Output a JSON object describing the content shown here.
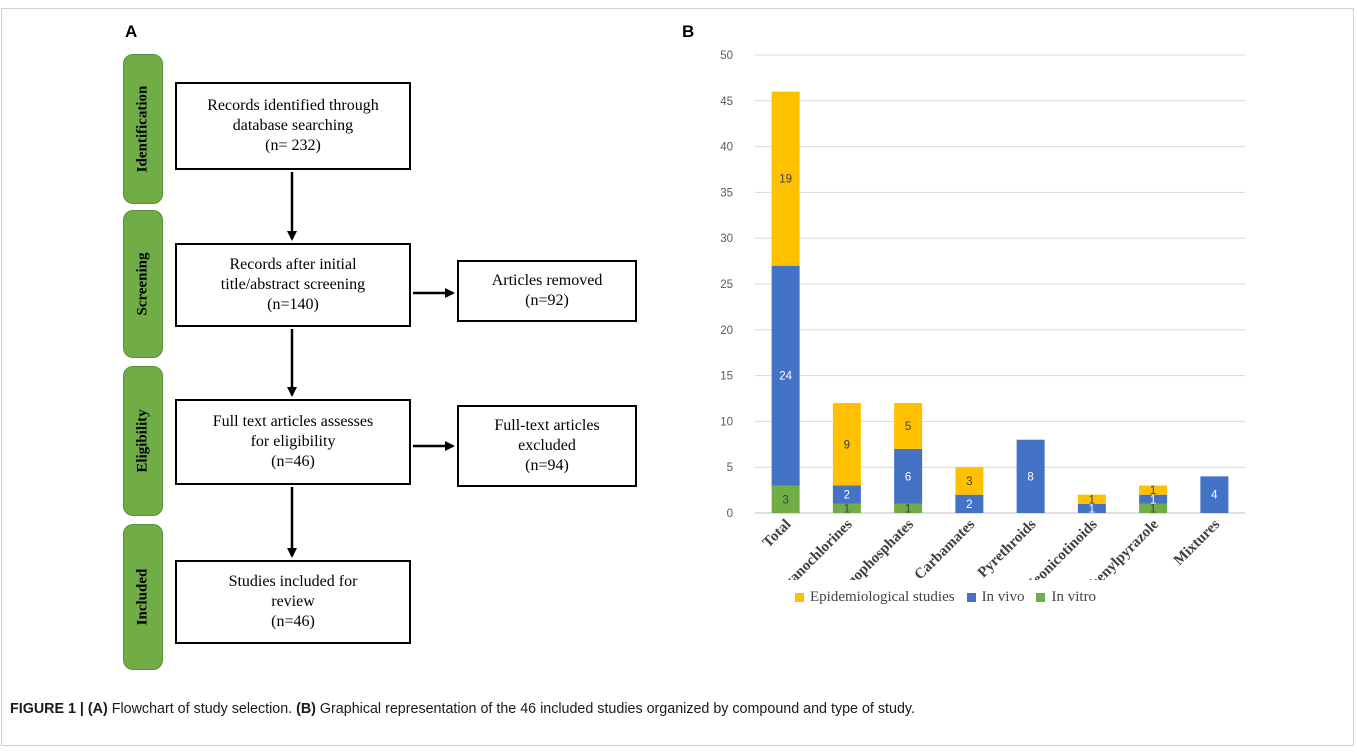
{
  "panel_a": {
    "label": "A",
    "stages": [
      "Identification",
      "Screening",
      "Eligibility",
      "Included"
    ],
    "boxes": {
      "identified": [
        "Records identified through",
        "database searching",
        "(n= 232)"
      ],
      "screened": [
        "Records after initial",
        "title/abstract screening",
        "(n=140)"
      ],
      "removed": [
        "Articles removed",
        "(n=92)"
      ],
      "eligible": [
        "Full text articles assesses",
        "for eligibility",
        "(n=46)"
      ],
      "excluded": [
        "Full-text articles",
        "excluded",
        "(n=94)"
      ],
      "included": [
        "Studies included for",
        "review",
        "(n=46)"
      ]
    }
  },
  "panel_b": {
    "label": "B"
  },
  "chart_data": {
    "type": "bar",
    "stacked": true,
    "categories": [
      "Total",
      "Organochlorines",
      "Organophosphates",
      "Carbamates",
      "Pyrethroids",
      "Neonicotinoids",
      "Phenylpyrazole",
      "Mixtures"
    ],
    "series": [
      {
        "name": "In vitro",
        "color": "#70ad47",
        "values": [
          3,
          1,
          1,
          0,
          0,
          0,
          1,
          0
        ]
      },
      {
        "name": "In vivo",
        "color": "#4472c4",
        "values": [
          24,
          2,
          6,
          2,
          8,
          1,
          1,
          4
        ]
      },
      {
        "name": "Epidemiological studies",
        "color": "#ffc000",
        "values": [
          19,
          9,
          5,
          3,
          0,
          1,
          1,
          0
        ]
      }
    ],
    "yticks": [
      0,
      5,
      10,
      15,
      20,
      25,
      30,
      35,
      40,
      45,
      50
    ],
    "ylim": [
      0,
      50
    ],
    "legend_order": [
      "Epidemiological studies",
      "In vivo",
      "In vitro"
    ],
    "legend_position": "bottom",
    "grid": true
  },
  "caption": {
    "figure_label": "FIGURE 1 |",
    "a_marker": "(A)",
    "a_text": " Flowchart of study selection. ",
    "b_marker": "(B)",
    "b_text": " Graphical representation of the 46 included studies organized by compound and type of study."
  }
}
